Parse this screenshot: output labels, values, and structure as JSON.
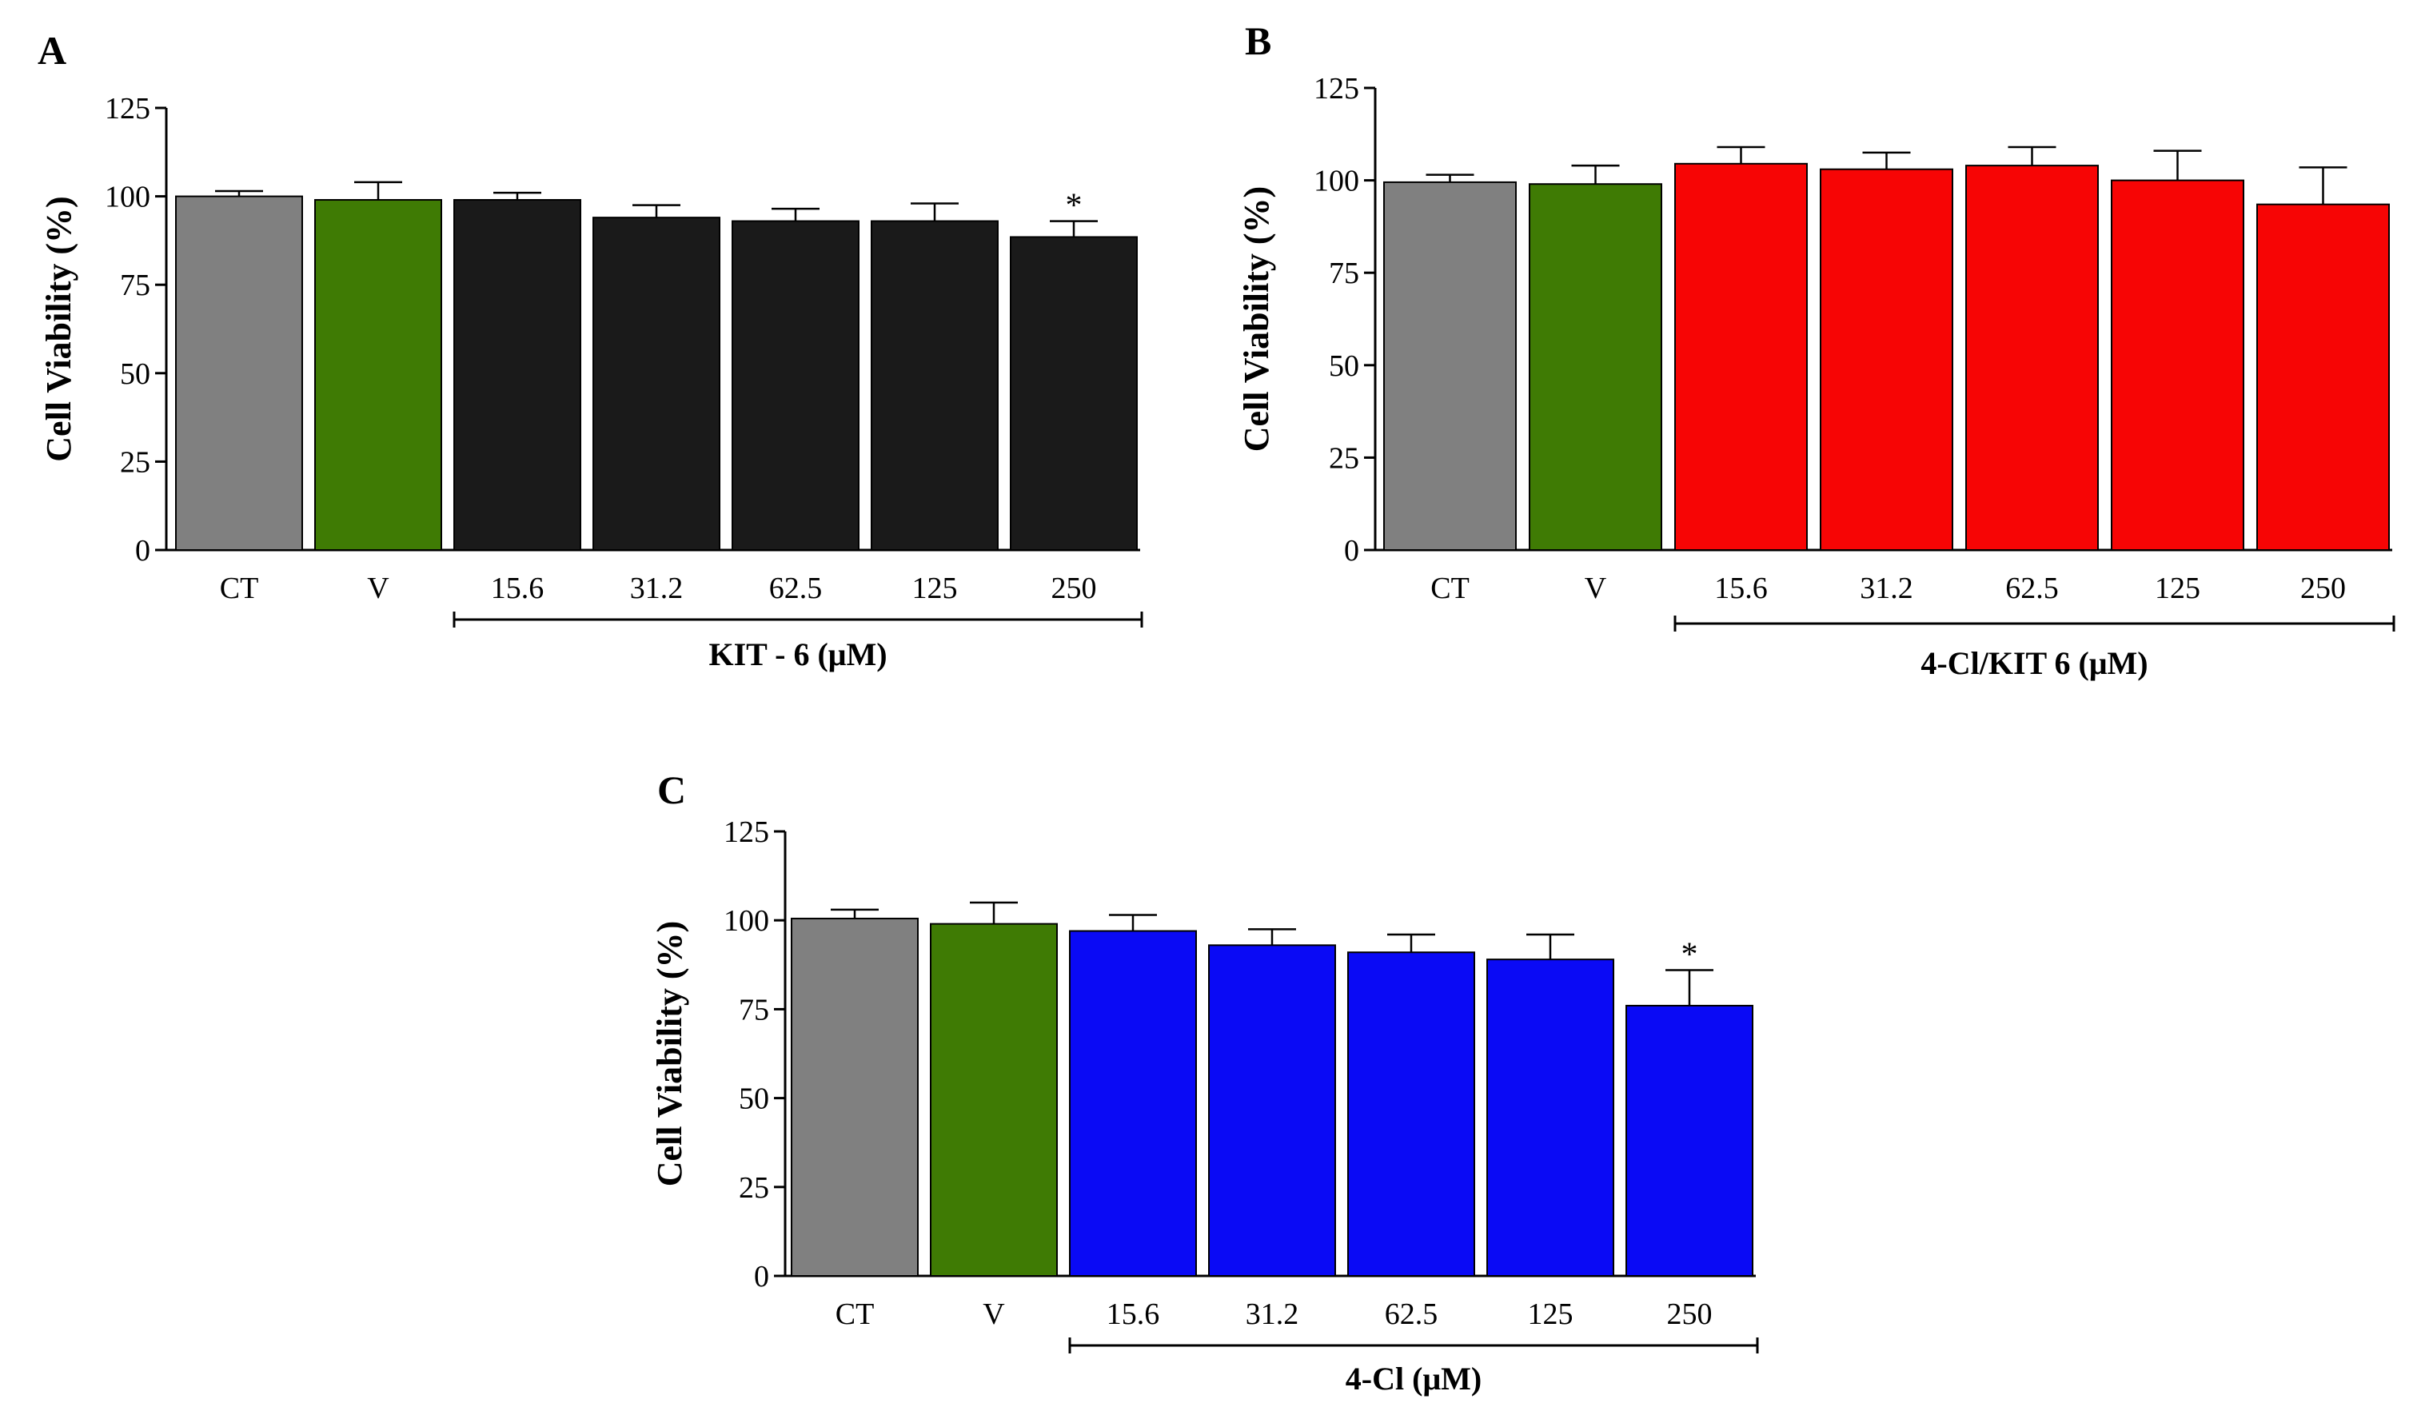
{
  "chart_data": [
    {
      "type": "bar",
      "panel": "A",
      "categories": [
        "CT",
        "V",
        "15.6",
        "31.2",
        "62.5",
        "125",
        "250"
      ],
      "values": [
        100,
        99,
        99,
        94,
        93,
        93,
        88.5
      ],
      "errors": [
        1.5,
        5,
        2,
        3.5,
        3.5,
        5,
        4.5
      ],
      "significance": [
        "",
        "",
        "",
        "",
        "",
        "",
        "*"
      ],
      "colors": [
        "#808080",
        "#3f7b04",
        "#1a1a1a",
        "#1a1a1a",
        "#1a1a1a",
        "#1a1a1a",
        "#1a1a1a"
      ],
      "ylabel": "Cell Viability (%)",
      "yticks": [
        "0",
        "25",
        "50",
        "75",
        "100",
        "125"
      ],
      "ylim": [
        0,
        125
      ],
      "group_label": "KIT - 6 (μM)",
      "group_range": [
        "15.6",
        "250"
      ]
    },
    {
      "type": "bar",
      "panel": "B",
      "categories": [
        "CT",
        "V",
        "15.6",
        "31.2",
        "62.5",
        "125",
        "250"
      ],
      "values": [
        99.5,
        99,
        104.5,
        103,
        104,
        100,
        93.5
      ],
      "errors": [
        2,
        5,
        4.5,
        4.5,
        5,
        8,
        10
      ],
      "significance": [
        "",
        "",
        "",
        "",
        "",
        "",
        ""
      ],
      "colors": [
        "#808080",
        "#3f7b04",
        "#f70505",
        "#f70505",
        "#f70505",
        "#f70505",
        "#f70505"
      ],
      "ylabel": "Cell Viability (%)",
      "yticks": [
        "0",
        "25",
        "50",
        "75",
        "100",
        "125"
      ],
      "ylim": [
        0,
        125
      ],
      "group_label": "4-Cl/KIT 6 (μM)",
      "group_range": [
        "15.6",
        "250"
      ]
    },
    {
      "type": "bar",
      "panel": "C",
      "categories": [
        "CT",
        "V",
        "15.6",
        "31.2",
        "62.5",
        "125",
        "250"
      ],
      "values": [
        100.5,
        99,
        97,
        93,
        91,
        89,
        76
      ],
      "errors": [
        2.5,
        6,
        4.5,
        4.5,
        5,
        7,
        10
      ],
      "significance": [
        "",
        "",
        "",
        "",
        "",
        "",
        "*"
      ],
      "colors": [
        "#808080",
        "#3f7b04",
        "#0a0af5",
        "#0a0af5",
        "#0a0af5",
        "#0a0af5",
        "#0a0af5"
      ],
      "ylabel": "Cell Viability (%)",
      "yticks": [
        "0",
        "25",
        "50",
        "75",
        "100",
        "125"
      ],
      "ylim": [
        0,
        125
      ],
      "group_label": "4-Cl (μM)",
      "group_range": [
        "15.6",
        "250"
      ]
    }
  ]
}
